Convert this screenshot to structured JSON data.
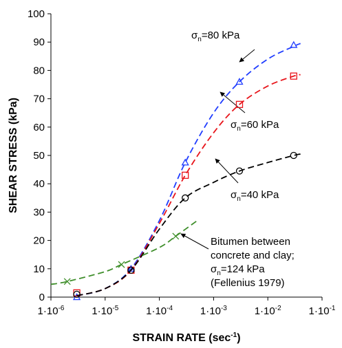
{
  "chart_data": {
    "type": "scatter",
    "log_x": true,
    "x_label": {
      "text": "STRAIN RATE (sec",
      "sup": "-1",
      "end": ")"
    },
    "y_label": "SHEAR STRESS (kPa)",
    "xlim": [
      1e-06,
      0.1
    ],
    "ylim": [
      0,
      100
    ],
    "xticks": [
      {
        "value": 1e-06,
        "label": "1·10",
        "exponent": "-6"
      },
      {
        "value": 1e-05,
        "label": "1·10",
        "exponent": "-5"
      },
      {
        "value": 0.0001,
        "label": "1·10",
        "exponent": "-4"
      },
      {
        "value": 0.001,
        "label": "1·10",
        "exponent": "-3"
      },
      {
        "value": 0.01,
        "label": "1·10",
        "exponent": "-2"
      },
      {
        "value": 0.1,
        "label": "1·10",
        "exponent": "-1"
      }
    ],
    "yticks": [
      0,
      10,
      20,
      30,
      40,
      50,
      60,
      70,
      80,
      90,
      100
    ],
    "series": [
      {
        "marker": "triangle",
        "color": "#1f3cff",
        "x": [
          3e-06,
          3e-05,
          0.0003,
          0.003,
          0.03
        ],
        "values": [
          0,
          10,
          47.5,
          76,
          89
        ],
        "curve_x": [
          3e-06,
          1e-05,
          3e-05,
          0.0001,
          0.0003,
          0.001,
          0.003,
          0.01,
          0.03,
          0.04
        ],
        "curve_values": [
          0.5,
          3,
          10,
          27,
          47.5,
          65,
          76,
          84,
          88.5,
          89.5
        ]
      },
      {
        "marker": "square",
        "color": "#e8141a",
        "x": [
          3e-06,
          3e-05,
          0.0003,
          0.003,
          0.03
        ],
        "values": [
          1.5,
          9.5,
          43,
          68,
          78
        ],
        "curve_x": [
          3e-06,
          1e-05,
          3e-05,
          0.0001,
          0.0003,
          0.001,
          0.003,
          0.01,
          0.03,
          0.04
        ],
        "curve_values": [
          0.5,
          3,
          9.5,
          26,
          43,
          58,
          68,
          74.5,
          78,
          78.5
        ]
      },
      {
        "marker": "circle",
        "color": "#000000",
        "x": [
          3e-06,
          3e-05,
          0.0003,
          0.003,
          0.03
        ],
        "values": [
          1,
          9.5,
          35,
          44.5,
          50
        ],
        "curve_x": [
          3e-06,
          1e-05,
          3e-05,
          0.0001,
          0.0003,
          0.001,
          0.003,
          0.01,
          0.03,
          0.04
        ],
        "curve_values": [
          0.5,
          3,
          9.5,
          24,
          35,
          40.5,
          44.5,
          47.5,
          50,
          50.5
        ]
      },
      {
        "marker": "cross",
        "color": "#3e8e2a",
        "x": [
          2e-06,
          2e-05,
          0.0002
        ],
        "values": [
          5.5,
          11.5,
          21.5
        ],
        "curve_x": [
          1e-06,
          2e-06,
          1e-05,
          2e-05,
          0.0001,
          0.0002,
          0.0005
        ],
        "curve_values": [
          4.5,
          5.5,
          9,
          11.5,
          17.5,
          21.5,
          27
        ]
      }
    ],
    "annotations": [
      {
        "lines": [
          [
            {
              "t": "σ"
            },
            {
              "t": "n",
              "sub": true
            },
            {
              "t": "=80 kPa"
            }
          ]
        ]
      },
      {
        "lines": [
          [
            {
              "t": "σ"
            },
            {
              "t": "n",
              "sub": true
            },
            {
              "t": "=60 kPa"
            }
          ]
        ]
      },
      {
        "lines": [
          [
            {
              "t": "σ"
            },
            {
              "t": "n",
              "sub": true
            },
            {
              "t": "=40 kPa"
            }
          ]
        ]
      },
      {
        "lines": [
          [
            {
              "t": "Bitumen between"
            }
          ],
          [
            {
              "t": "concrete and clay;"
            }
          ],
          [
            {
              "t": "σ"
            },
            {
              "t": "n",
              "sub": true
            },
            {
              "t": "=124 kPa"
            }
          ],
          [
            {
              "t": "(Fellenius 1979)"
            }
          ]
        ]
      }
    ]
  }
}
